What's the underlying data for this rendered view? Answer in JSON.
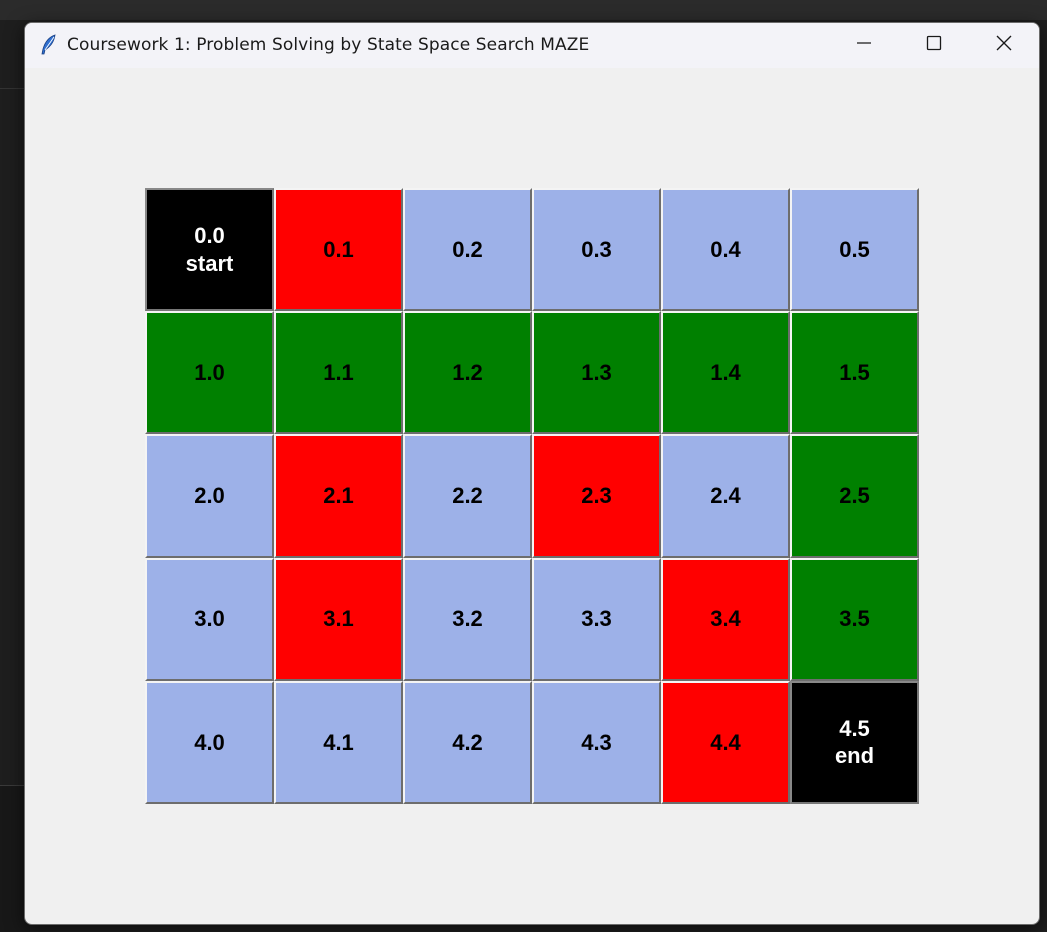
{
  "window": {
    "title": "Coursework 1: Problem Solving by State Space Search MAZE",
    "icon": "feather-icon"
  },
  "titlebar_buttons": [
    "minimize-icon",
    "maximize-icon",
    "close-icon"
  ],
  "colors": {
    "open": "#9db1e8",
    "wall": "#ff0000",
    "path": "#008000",
    "terminal": "#000000"
  },
  "maze": {
    "rows": [
      [
        {
          "label": "0.0",
          "sub": "start",
          "type": "black"
        },
        {
          "label": "0.1",
          "sub": "",
          "type": "red"
        },
        {
          "label": "0.2",
          "sub": "",
          "type": "light"
        },
        {
          "label": "0.3",
          "sub": "",
          "type": "light"
        },
        {
          "label": "0.4",
          "sub": "",
          "type": "light"
        },
        {
          "label": "0.5",
          "sub": "",
          "type": "light"
        }
      ],
      [
        {
          "label": "1.0",
          "sub": "",
          "type": "green"
        },
        {
          "label": "1.1",
          "sub": "",
          "type": "green"
        },
        {
          "label": "1.2",
          "sub": "",
          "type": "green"
        },
        {
          "label": "1.3",
          "sub": "",
          "type": "green"
        },
        {
          "label": "1.4",
          "sub": "",
          "type": "green"
        },
        {
          "label": "1.5",
          "sub": "",
          "type": "green"
        }
      ],
      [
        {
          "label": "2.0",
          "sub": "",
          "type": "light"
        },
        {
          "label": "2.1",
          "sub": "",
          "type": "red"
        },
        {
          "label": "2.2",
          "sub": "",
          "type": "light"
        },
        {
          "label": "2.3",
          "sub": "",
          "type": "red"
        },
        {
          "label": "2.4",
          "sub": "",
          "type": "light"
        },
        {
          "label": "2.5",
          "sub": "",
          "type": "green"
        }
      ],
      [
        {
          "label": "3.0",
          "sub": "",
          "type": "light"
        },
        {
          "label": "3.1",
          "sub": "",
          "type": "red"
        },
        {
          "label": "3.2",
          "sub": "",
          "type": "light"
        },
        {
          "label": "3.3",
          "sub": "",
          "type": "light"
        },
        {
          "label": "3.4",
          "sub": "",
          "type": "red"
        },
        {
          "label": "3.5",
          "sub": "",
          "type": "green"
        }
      ],
      [
        {
          "label": "4.0",
          "sub": "",
          "type": "light"
        },
        {
          "label": "4.1",
          "sub": "",
          "type": "light"
        },
        {
          "label": "4.2",
          "sub": "",
          "type": "light"
        },
        {
          "label": "4.3",
          "sub": "",
          "type": "light"
        },
        {
          "label": "4.4",
          "sub": "",
          "type": "red"
        },
        {
          "label": "4.5",
          "sub": "end",
          "type": "black"
        }
      ]
    ]
  }
}
